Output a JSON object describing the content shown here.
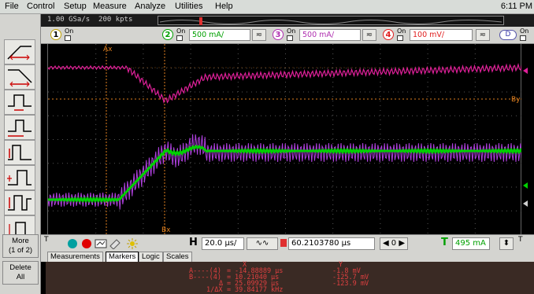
{
  "menu": [
    "File",
    "Control",
    "Setup",
    "Measure",
    "Analyze",
    "Utilities",
    "Help"
  ],
  "clock": "6:11 PM",
  "status": {
    "sample_rate": "1.00 GSa/s",
    "points": "200 kpts"
  },
  "channels": [
    {
      "num": "1",
      "on_label": "On",
      "scale": ""
    },
    {
      "num": "2",
      "on_label": "On",
      "scale": "500 mA/",
      "color": "#00c000"
    },
    {
      "num": "3",
      "on_label": "On",
      "scale": "500 mA/",
      "color": "#c040c0"
    },
    {
      "num": "4",
      "on_label": "On",
      "scale": "100 mV/",
      "color": "#ff5050"
    }
  ],
  "d_button": "D",
  "right_on_label": "On",
  "sidebar": {
    "more": "More",
    "more_page": "(1 of 2)",
    "delete": "Delete",
    "delete_sub": "All"
  },
  "plot_labels": {
    "ax": "Ax",
    "bx": "Bx",
    "by": "By"
  },
  "controls": {
    "horizontal_tag": "H",
    "horizontal_scale": "20.0 µs/",
    "delay": "60.2103780 µs",
    "delay_nav": "◀ 0 ▶",
    "trigger_tag": "T",
    "trigger_level": "495 mA"
  },
  "tabs": [
    "Measurements",
    "Markers",
    "Logic",
    "Scales"
  ],
  "active_tab": "Markers",
  "markers": {
    "header_x": "X",
    "header_y": "Y",
    "rows": [
      {
        "label": "A----(4)",
        "x": "-14.88889 µs",
        "y": "-1.8 mV"
      },
      {
        "label": "B----(4)",
        "x": "10.21040 µs",
        "y": "-125.7 mV"
      },
      {
        "label": "Δ",
        "x": "25.09929 µs",
        "y": "-123.9 mV"
      },
      {
        "label": "1/ΔX",
        "x": "39.84177 kHz",
        "y": ""
      }
    ]
  },
  "colors": {
    "ch2": "#00d000",
    "ch3": "#b040e0",
    "ch4": "#e0209a",
    "marker": "#e08020"
  }
}
